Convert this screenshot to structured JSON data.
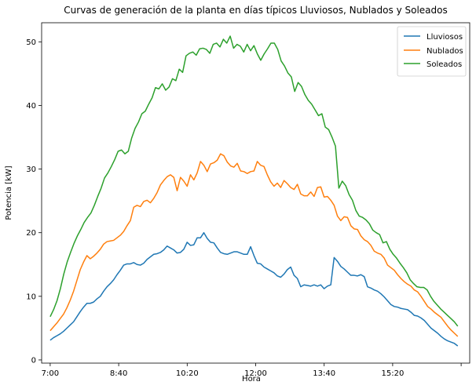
{
  "chart_data": {
    "type": "line",
    "title": "Curvas de generación de la planta en días típicos Lluviosos, Nublados y Soleados",
    "xlabel": "Hora",
    "ylabel": "Potencia [kW]",
    "x_tick_labels": [
      "7:00",
      "8:40",
      "10:20",
      "12:00",
      "13:40",
      "15:20",
      ""
    ],
    "x_tick_positions": [
      0,
      20,
      40,
      60,
      80,
      100,
      120
    ],
    "xlim": [
      -2.5,
      122.5
    ],
    "ylim": [
      -0.5,
      53
    ],
    "y_ticks": [
      0,
      10,
      20,
      30,
      40,
      50
    ],
    "grid": false,
    "legend_position": "top-right",
    "series": [
      {
        "name": "Lluviosos",
        "color": "#1f77b4",
        "values": [
          3.1,
          3.5,
          3.8,
          4.1,
          4.5,
          5.0,
          5.5,
          6.0,
          6.8,
          7.6,
          8.3,
          8.9,
          8.9,
          9.1,
          9.6,
          10.0,
          10.8,
          11.5,
          12.0,
          12.6,
          13.4,
          14.1,
          14.9,
          15.1,
          15.1,
          15.3,
          15.0,
          14.9,
          15.2,
          15.8,
          16.2,
          16.6,
          16.7,
          16.9,
          17.3,
          17.9,
          17.6,
          17.3,
          16.8,
          16.9,
          17.4,
          18.5,
          18.0,
          18.1,
          19.2,
          19.2,
          20.0,
          19.1,
          18.5,
          18.4,
          17.6,
          16.9,
          16.7,
          16.6,
          16.8,
          17.0,
          17.0,
          16.8,
          16.6,
          16.6,
          17.8,
          16.4,
          15.2,
          15.1,
          14.6,
          14.3,
          14.0,
          13.7,
          13.2,
          13.0,
          13.5,
          14.2,
          14.6,
          13.3,
          12.8,
          11.5,
          11.8,
          11.7,
          11.6,
          11.8,
          11.6,
          11.8,
          11.2,
          11.6,
          11.8,
          16.1,
          15.5,
          14.7,
          14.3,
          13.8,
          13.3,
          13.3,
          13.2,
          13.4,
          13.1,
          11.5,
          11.3,
          11.0,
          10.8,
          10.4,
          9.9,
          9.3,
          8.7,
          8.4,
          8.3,
          8.1,
          8.0,
          7.9,
          7.5,
          7.0,
          6.9,
          6.6,
          6.2,
          5.6,
          5.0,
          4.6,
          4.2,
          3.7,
          3.3,
          3.0,
          2.8,
          2.6,
          2.2
        ],
        "x_end": 119
      },
      {
        "name": "Nublados",
        "color": "#ff7f0e",
        "values": [
          4.6,
          5.2,
          5.8,
          6.5,
          7.2,
          8.2,
          9.4,
          10.8,
          12.5,
          14.2,
          15.4,
          16.4,
          15.9,
          16.3,
          16.8,
          17.4,
          18.2,
          18.6,
          18.7,
          18.8,
          19.2,
          19.6,
          20.2,
          21.1,
          21.9,
          24.0,
          24.3,
          24.1,
          24.9,
          25.1,
          24.7,
          25.4,
          26.3,
          27.5,
          28.2,
          28.8,
          29.1,
          28.7,
          26.6,
          28.7,
          28.1,
          27.3,
          29.1,
          28.3,
          29.4,
          31.2,
          30.6,
          29.6,
          30.8,
          31.0,
          31.4,
          32.4,
          32.1,
          31.1,
          30.5,
          30.3,
          30.9,
          29.7,
          29.6,
          29.3,
          29.6,
          29.7,
          31.2,
          30.6,
          30.4,
          29.1,
          28.0,
          27.3,
          27.8,
          27.1,
          28.2,
          27.7,
          27.1,
          26.8,
          27.6,
          26.1,
          25.8,
          25.8,
          26.4,
          25.7,
          27.1,
          27.2,
          25.6,
          25.7,
          25.1,
          24.3,
          22.6,
          21.9,
          22.5,
          22.4,
          21.1,
          20.6,
          20.5,
          19.5,
          18.9,
          18.6,
          18.0,
          17.1,
          16.8,
          16.6,
          16.0,
          14.9,
          14.5,
          14.1,
          13.4,
          12.8,
          12.3,
          11.9,
          11.6,
          11.0,
          10.7,
          10.0,
          9.2,
          8.4,
          8.0,
          7.5,
          7.1,
          6.7,
          6.0,
          5.3,
          4.7,
          4.2,
          3.7
        ],
        "x_end": 119
      },
      {
        "name": "Soleados",
        "color": "#2ca02c",
        "values": [
          6.8,
          7.9,
          9.3,
          11.2,
          13.5,
          15.4,
          16.9,
          18.3,
          19.5,
          20.5,
          21.6,
          22.4,
          23.1,
          24.3,
          25.7,
          27.0,
          28.6,
          29.4,
          30.4,
          31.5,
          32.8,
          33.0,
          32.4,
          32.8,
          34.9,
          36.4,
          37.4,
          38.7,
          39.1,
          40.2,
          41.2,
          42.8,
          42.6,
          43.4,
          42.4,
          42.9,
          44.2,
          43.9,
          45.7,
          45.2,
          47.8,
          48.2,
          48.4,
          47.9,
          48.9,
          49.0,
          48.8,
          48.2,
          49.6,
          49.8,
          49.2,
          50.4,
          49.8,
          50.9,
          49.0,
          49.6,
          49.3,
          48.4,
          49.6,
          48.6,
          49.4,
          48.1,
          47.1,
          48.1,
          48.9,
          49.8,
          49.8,
          48.8,
          47.0,
          46.2,
          45.1,
          44.5,
          42.2,
          43.6,
          43.0,
          41.7,
          40.8,
          40.2,
          39.3,
          38.4,
          38.7,
          36.6,
          36.2,
          35.0,
          33.6,
          27.0,
          28.1,
          27.4,
          26.0,
          25.1,
          23.5,
          22.6,
          22.4,
          22.0,
          21.4,
          20.4,
          20.0,
          19.7,
          18.4,
          18.6,
          17.4,
          16.6,
          16.0,
          15.2,
          14.5,
          13.7,
          12.6,
          12.0,
          11.5,
          11.4,
          11.4,
          11.0,
          10.0,
          9.2,
          8.6,
          8.0,
          7.5,
          7.0,
          6.5,
          6.0,
          5.3
        ],
        "x_end": 119
      }
    ]
  }
}
